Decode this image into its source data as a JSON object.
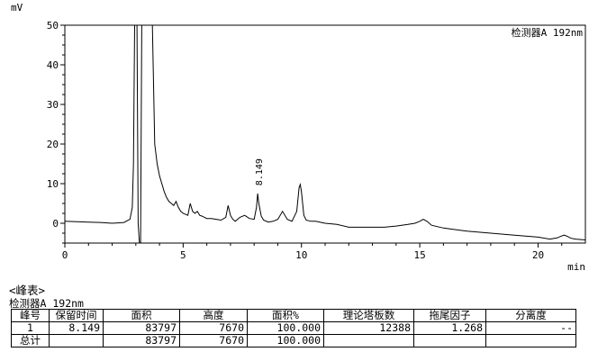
{
  "chart_data": {
    "type": "line",
    "y_unit": "mV",
    "x_unit": "min",
    "detector_label": "检测器A 192nm",
    "xlim": [
      0,
      22
    ],
    "ylim": [
      -5,
      50
    ],
    "x_ticks": [
      "0",
      "5",
      "10",
      "15",
      "20"
    ],
    "y_ticks": [
      "0",
      "10",
      "20",
      "30",
      "40",
      "50"
    ],
    "peak_label": "8.149",
    "grid": false,
    "series": [
      {
        "x": [
          0,
          0.5,
          1,
          1.5,
          2,
          2.5,
          2.75,
          2.85,
          2.9,
          2.95,
          3.05,
          3.1,
          3.15,
          3.2,
          3.25,
          3.3,
          3.4,
          3.5,
          3.6,
          3.65,
          3.7,
          3.8,
          3.9,
          4,
          4.1,
          4.2,
          4.3,
          4.4,
          4.5,
          4.6,
          4.7,
          4.8,
          4.9,
          5,
          5.2,
          5.3,
          5.4,
          5.5,
          5.6,
          5.7,
          5.8,
          5.9,
          6,
          6.2,
          6.4,
          6.6,
          6.8,
          6.9,
          7,
          7.1,
          7.2,
          7.4,
          7.6,
          7.8,
          8,
          8.1,
          8.15,
          8.2,
          8.3,
          8.4,
          8.6,
          8.8,
          9,
          9.2,
          9.4,
          9.6,
          9.8,
          9.9,
          9.95,
          10,
          10.1,
          10.2,
          10.4,
          10.6,
          11,
          11.5,
          12,
          12.5,
          13,
          13.5,
          14,
          14.5,
          14.8,
          15,
          15.15,
          15.3,
          15.5,
          16,
          17,
          18,
          19,
          20,
          20.5,
          20.8,
          21,
          21.1,
          21.2,
          21.4,
          21.6,
          22
        ],
        "y": [
          0.5,
          0.4,
          0.3,
          0.2,
          0,
          0.2,
          1,
          4,
          15,
          50,
          50,
          0,
          -5,
          -5,
          50,
          50,
          50,
          50,
          50,
          50,
          50,
          20,
          15,
          12,
          10,
          8,
          6.5,
          5.5,
          5,
          4.5,
          5.5,
          4,
          3,
          2.5,
          2,
          5,
          3,
          2.5,
          3,
          2,
          1.8,
          1.5,
          1.2,
          1.2,
          1,
          0.8,
          1.5,
          4.5,
          2,
          1,
          0.5,
          1.5,
          2,
          1.2,
          1,
          4,
          7.5,
          5,
          1.8,
          0.8,
          0.3,
          0.5,
          1,
          3,
          1,
          0.5,
          3,
          9,
          9.8,
          8,
          2,
          0.8,
          0.5,
          0.5,
          0,
          -0.3,
          -1,
          -1,
          -1,
          -1,
          -0.7,
          -0.3,
          0,
          0.5,
          1,
          0.5,
          -0.5,
          -1.2,
          -2,
          -2.5,
          -3,
          -3.5,
          -4,
          -3.7,
          -3.2,
          -3,
          -3.2,
          -3.8,
          -4,
          -4.2
        ]
      }
    ]
  },
  "peak_table": {
    "title": "<峰表>",
    "subtitle": "检测器A 192nm",
    "headers": [
      "峰号",
      "保留时间",
      "面积",
      "高度",
      "面积%",
      "理论塔板数",
      "拖尾因子",
      "分离度"
    ],
    "rows": [
      [
        "1",
        "8.149",
        "83797",
        "7670",
        "100.000",
        "12388",
        "1.268",
        "--"
      ],
      [
        "总计",
        "",
        "83797",
        "7670",
        "100.000",
        "",
        "",
        ""
      ]
    ]
  }
}
